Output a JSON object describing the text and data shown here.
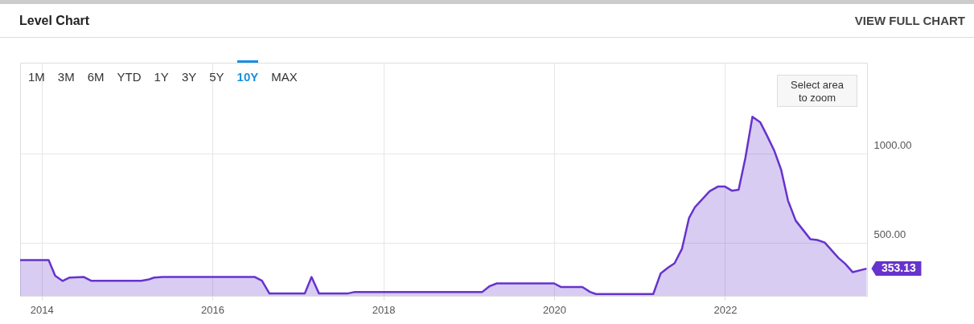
{
  "chart_data": {
    "type": "area",
    "title": "Level Chart",
    "annotations": [
      "VIEW FULL CHART",
      "1M",
      "3M",
      "6M",
      "YTD",
      "1Y",
      "3Y",
      "5Y",
      "10Y",
      "MAX",
      "Select area to zoom"
    ],
    "x": [
      "2013-10-01",
      "2014-01-31",
      "2014-02-28",
      "2014-04-01",
      "2014-05-01",
      "2014-07-01",
      "2014-07-31",
      "2015-03-03",
      "2015-04-01",
      "2015-04-27",
      "2015-06-03",
      "2016-07-01",
      "2016-07-31",
      "2016-09-01",
      "2017-01-30",
      "2017-02-28",
      "2017-04-01",
      "2017-07-31",
      "2017-09-01",
      "2019-02-28",
      "2019-04-01",
      "2019-05-01",
      "2020-01-01",
      "2020-01-30",
      "2020-05-01",
      "2020-06-03",
      "2020-06-28",
      "2021-02-28",
      "2021-04-01",
      "2021-05-04",
      "2021-05-30",
      "2021-07-01",
      "2021-07-31",
      "2021-08-25",
      "2021-10-27",
      "2021-12-01",
      "2022-01-01",
      "2022-01-30",
      "2022-02-28",
      "2022-03-29",
      "2022-04-28",
      "2022-05-31",
      "2022-06-28",
      "2022-07-31",
      "2022-08-29",
      "2022-09-27",
      "2022-10-30",
      "2023-01-01",
      "2023-01-30",
      "2023-03-03",
      "2023-05-01",
      "2023-05-30",
      "2023-07-01",
      "2023-08-29"
    ],
    "series": [
      {
        "color": "#6633cc",
        "values": [
          401,
          401,
          313,
          284,
          303,
          306,
          285,
          285,
          291,
          303,
          306,
          306,
          285,
          213,
          213,
          306,
          213,
          213,
          222,
          222,
          255,
          270,
          270,
          250,
          250,
          222,
          210,
          210,
          327,
          360,
          383,
          465,
          638,
          698,
          788,
          814,
          814,
          791,
          796,
          976,
          1206,
          1176,
          1104,
          1014,
          908,
          736,
          623,
          518,
          514,
          500,
          413,
          380,
          333,
          353.13
        ],
        "value_labels": [
          null,
          null,
          null,
          null,
          null,
          null,
          null,
          null,
          null,
          null,
          null,
          null,
          null,
          null,
          null,
          null,
          null,
          null,
          null,
          null,
          null,
          null,
          null,
          null,
          null,
          null,
          null,
          null,
          null,
          null,
          null,
          null,
          null,
          null,
          null,
          null,
          null,
          null,
          null,
          null,
          null,
          null,
          null,
          null,
          null,
          null,
          null,
          null,
          null,
          null,
          null,
          null,
          null,
          "353.13"
        ]
      }
    ],
    "xlim": [
      "2013-10-01",
      "2023-08-31"
    ],
    "xticks": [
      "2014",
      "2016",
      "2018",
      "2020",
      "2022"
    ],
    "ylim": [
      200,
      1510
    ],
    "yticks": [
      {
        "value": 500,
        "label": "500.00"
      },
      {
        "value": 1000,
        "label": "1000.00"
      }
    ],
    "grid": true
  }
}
